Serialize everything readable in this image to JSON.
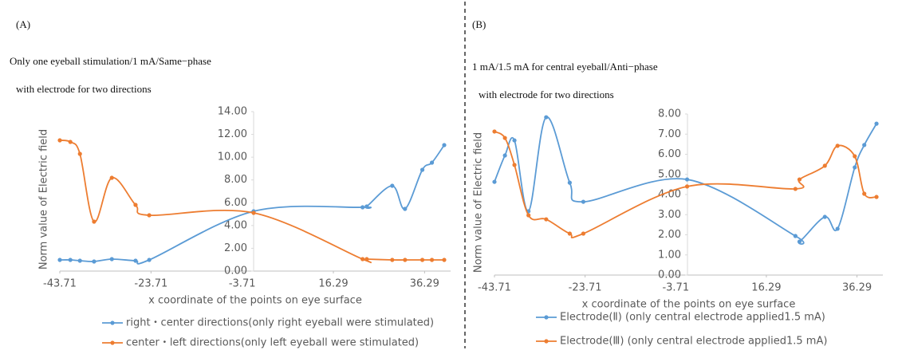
{
  "chart_data": [
    {
      "type": "line",
      "panel": "(A)",
      "title_lines": [
        "Only one eyeball stimulation/1 mA/Same−phase",
        "with electrode for two directions"
      ],
      "y_label": "Norm value of Electric field",
      "x_label": "x coordinate of the points on eye surface",
      "x": [
        -43.71,
        -41.4,
        -39.3,
        -36.2,
        -32.3,
        -27.1,
        -24.1,
        -1.2,
        22.7,
        23.6,
        29.2,
        32,
        35.8,
        37.9,
        40.6
      ],
      "series": [
        {
          "name": "right・center directions(only right eyeball were stimulated)",
          "color": "#5b9bd5",
          "values": [
            0.98,
            0.98,
            0.91,
            0.84,
            1.05,
            0.91,
            0.98,
            5.25,
            5.6,
            5.67,
            7.49,
            5.46,
            8.89,
            9.52,
            11.06
          ]
        },
        {
          "name": "center・left directions(only left eyeball were stimulated)",
          "color": "#ed7d31",
          "values": [
            11.48,
            11.34,
            10.29,
            4.34,
            8.19,
            5.81,
            4.9,
            5.11,
            1.05,
            1.05,
            0.98,
            0.98,
            0.98,
            0.98,
            0.98
          ]
        }
      ],
      "xlim": [
        -43.71,
        42
      ],
      "xticks": [
        -43.71,
        -23.71,
        -3.71,
        16.29,
        36.29
      ],
      "ylim": [
        0,
        14
      ],
      "yticks": [
        {
          "value": 0,
          "label": "0.00"
        },
        {
          "value": 2,
          "label": "2.00"
        },
        {
          "value": 4,
          "label": "4.00"
        },
        {
          "value": 6,
          "label": "6.00"
        },
        {
          "value": 8,
          "label": "8.00"
        },
        {
          "value": 10,
          "label": "10.00"
        },
        {
          "value": 12,
          "label": "12.00"
        },
        {
          "value": 14,
          "label": "14.00"
        }
      ],
      "grid": false
    },
    {
      "type": "line",
      "panel": "(B)",
      "title_lines": [
        "1 mA/1.5 mA for central eyeball/Anti−phase",
        "with electrode for two directions"
      ],
      "y_label": "Norm value of Electric field",
      "x_label": "x coordinate of the points on eye surface",
      "x": [
        -43.71,
        -41.4,
        -39.3,
        -36.2,
        -32.3,
        -27.1,
        -24.1,
        -1.2,
        22.7,
        23.6,
        29.2,
        32,
        35.8,
        37.9,
        40.6
      ],
      "series": [
        {
          "name": "Electrode(Ⅱ) (only central electrode applied1.5 mA)",
          "color": "#5b9bd5",
          "values": [
            4.63,
            5.94,
            6.69,
            3.17,
            7.84,
            4.59,
            3.64,
            4.75,
            1.94,
            1.66,
            2.89,
            2.3,
            5.35,
            6.46,
            7.52
          ]
        },
        {
          "name": "Electrode(Ⅲ) (only central electrode applied1.5 mA)",
          "color": "#ed7d31",
          "values": [
            7.13,
            6.81,
            5.47,
            2.97,
            2.77,
            2.06,
            2.06,
            4.4,
            4.28,
            4.75,
            5.43,
            6.42,
            5.9,
            4.04,
            3.88
          ]
        }
      ],
      "xlim": [
        -43.71,
        42
      ],
      "xticks": [
        -43.71,
        -23.71,
        -3.71,
        16.29,
        36.29
      ],
      "ylim": [
        0,
        8
      ],
      "yticks": [
        {
          "value": 0,
          "label": "0.00"
        },
        {
          "value": 1,
          "label": "1.00"
        },
        {
          "value": 2,
          "label": "2.00"
        },
        {
          "value": 3,
          "label": "3.00"
        },
        {
          "value": 4,
          "label": "4.00"
        },
        {
          "value": 5,
          "label": "5.00"
        },
        {
          "value": 6,
          "label": "6.00"
        },
        {
          "value": 7,
          "label": "7.00"
        },
        {
          "value": 8,
          "label": "8.00"
        }
      ],
      "grid": false
    }
  ]
}
